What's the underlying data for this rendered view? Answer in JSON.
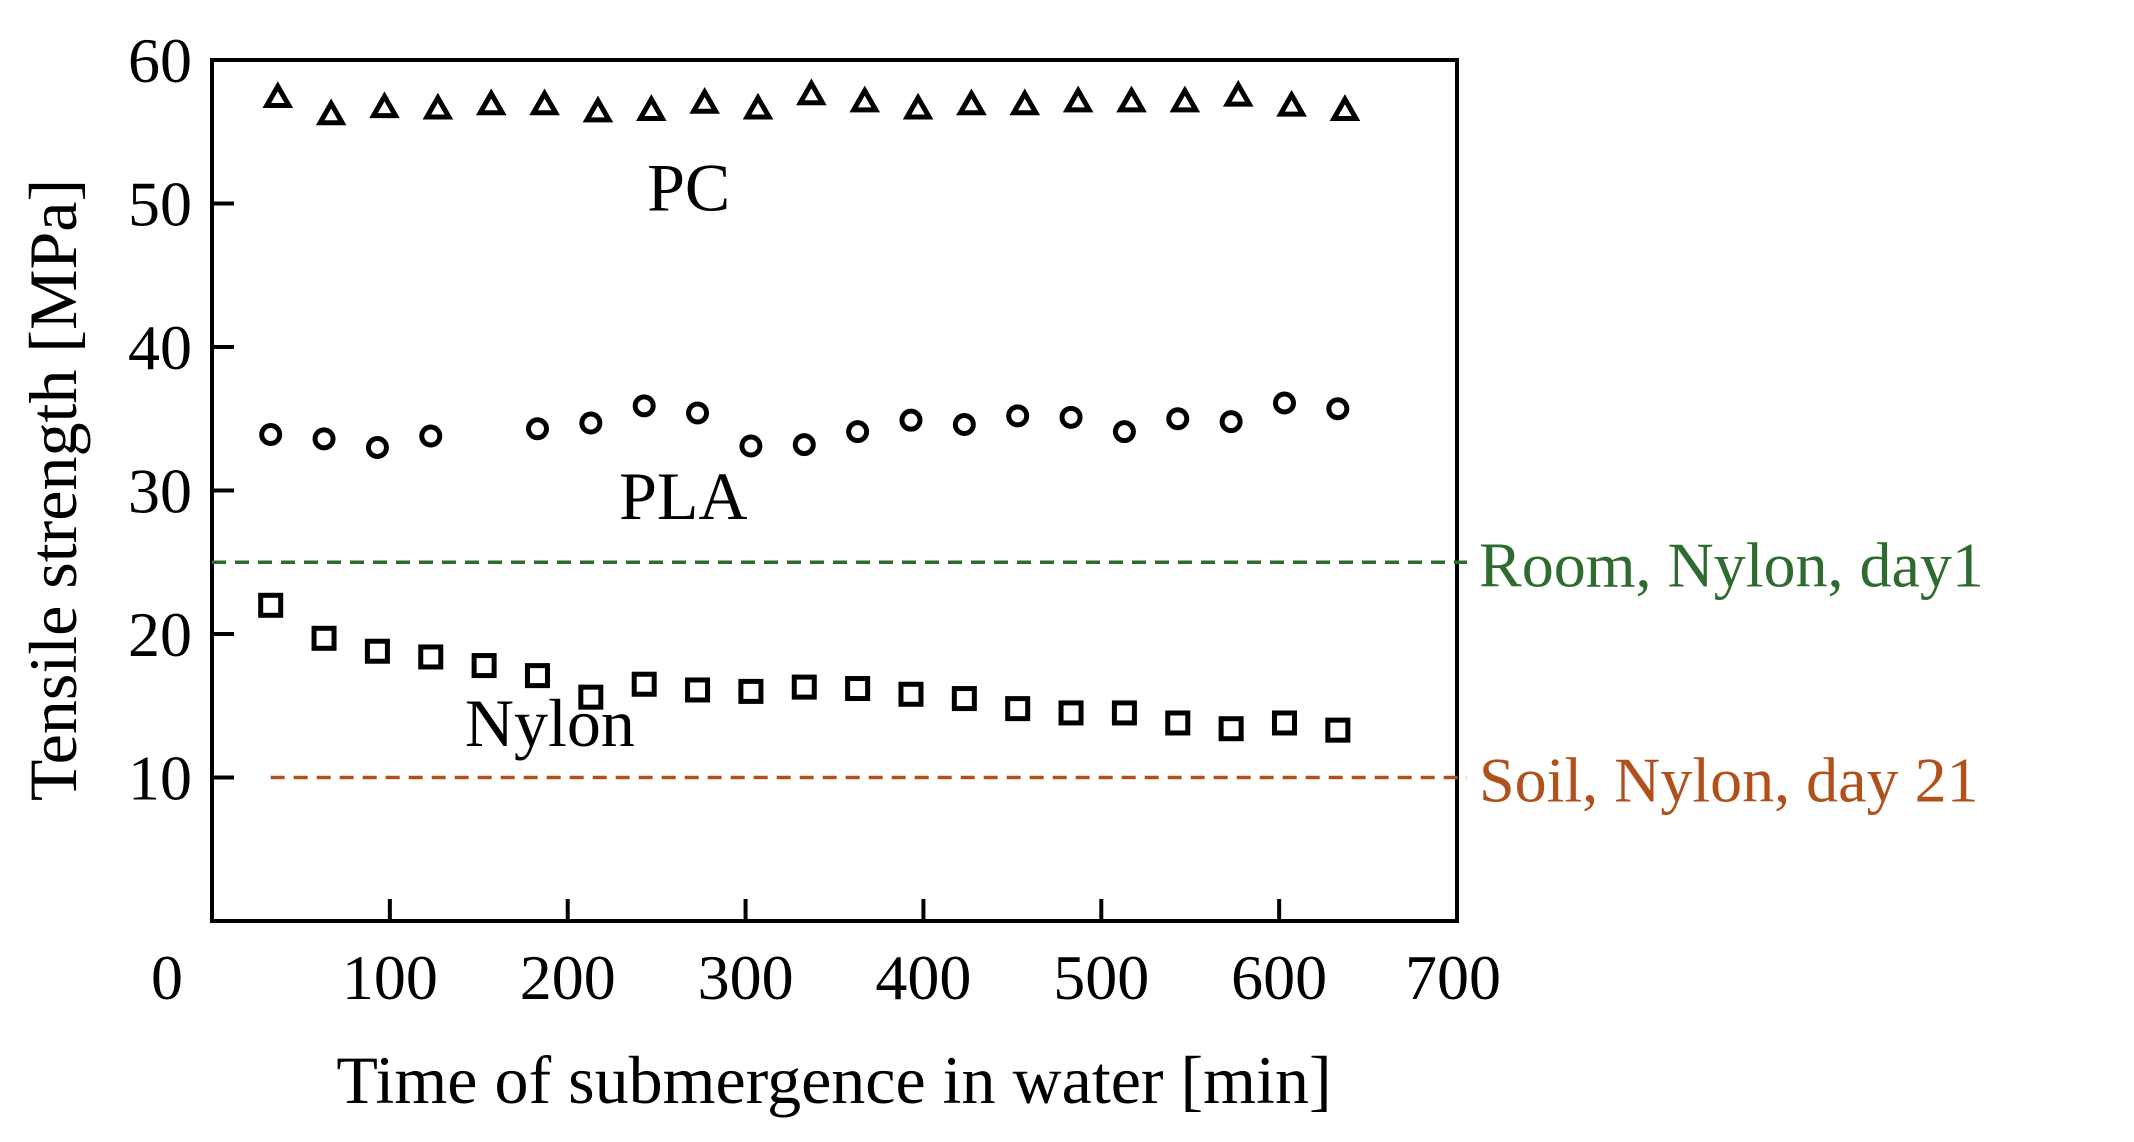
{
  "chart_data": {
    "type": "scatter",
    "title": "",
    "xlabel": "Time of submergence in water [min]",
    "ylabel": "Tensile strength [MPa]",
    "xlim": [
      0,
      700
    ],
    "ylim": [
      0,
      60
    ],
    "x_ticks": [
      0,
      100,
      200,
      300,
      400,
      500,
      600,
      700
    ],
    "y_ticks": [
      10,
      20,
      30,
      40,
      50,
      60
    ],
    "x_tick_labels": [
      "0",
      "100",
      "200",
      "300",
      "400",
      "500",
      "600",
      "700"
    ],
    "y_tick_labels": [
      "10",
      "20",
      "30",
      "40",
      "50",
      "60"
    ],
    "grid": false,
    "legend": "none",
    "series": [
      {
        "name": "PC",
        "marker": "triangle",
        "color": "#000000",
        "label_position": {
          "x": 268,
          "y": 49.5
        },
        "x": [
          37,
          67,
          97,
          127,
          157,
          187,
          217,
          247,
          277,
          307,
          337,
          367,
          397,
          427,
          457,
          487,
          517,
          547,
          577,
          607,
          637
        ],
        "y": [
          57.4,
          56.2,
          56.7,
          56.6,
          56.9,
          56.9,
          56.4,
          56.5,
          57.0,
          56.6,
          57.6,
          57.1,
          56.6,
          56.9,
          56.9,
          57.1,
          57.1,
          57.1,
          57.5,
          56.8,
          56.5
        ]
      },
      {
        "name": "PLA",
        "marker": "circle",
        "color": "#000000",
        "label_position": {
          "x": 265,
          "y": 28.0
        },
        "x": [
          33,
          63,
          93,
          123,
          183,
          213,
          243,
          273,
          303,
          333,
          363,
          393,
          423,
          453,
          483,
          513,
          543,
          573,
          603,
          633
        ],
        "y": [
          33.9,
          33.6,
          33.0,
          33.8,
          34.3,
          34.7,
          35.9,
          35.4,
          33.1,
          33.2,
          34.1,
          34.9,
          34.6,
          35.2,
          35.1,
          34.1,
          35.0,
          34.8,
          36.1,
          35.7
        ]
      },
      {
        "name": "Nylon",
        "marker": "square",
        "color": "#000000",
        "label_position": {
          "x": 190,
          "y": 12.2
        },
        "x": [
          33,
          63,
          93,
          123,
          153,
          183,
          213,
          243,
          273,
          303,
          333,
          363,
          393,
          423,
          453,
          483,
          513,
          543,
          573,
          603,
          633
        ],
        "y": [
          22.0,
          19.7,
          18.8,
          18.4,
          17.8,
          17.1,
          15.6,
          16.5,
          16.1,
          16.0,
          16.3,
          16.2,
          15.8,
          15.5,
          14.8,
          14.5,
          14.5,
          13.8,
          13.4,
          13.8,
          13.3
        ]
      }
    ],
    "reference_lines": [
      {
        "label": "Room, Nylon, day1",
        "y": 25,
        "x_start": 0,
        "color": "#2e6b2e"
      },
      {
        "label": "Soil, Nylon, day 21",
        "y": 10,
        "x_start": 33,
        "color": "#b0501a"
      }
    ]
  }
}
